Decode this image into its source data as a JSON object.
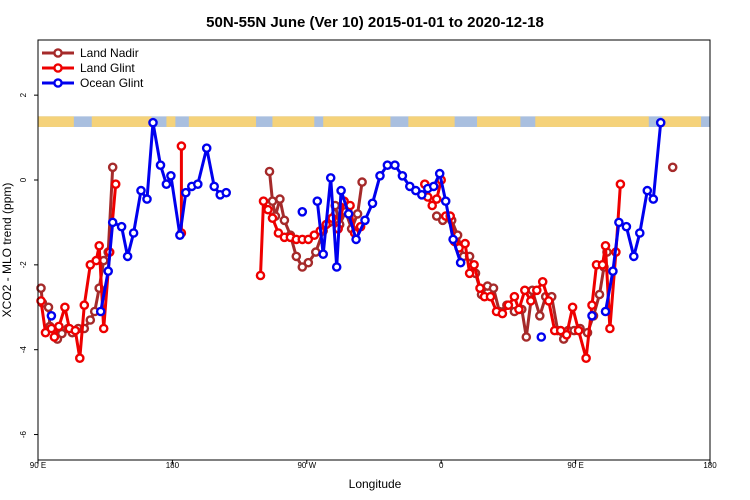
{
  "chart_data": {
    "type": "line",
    "title": "50N-55N June (Ver 10)   2015-01-01 to 2020-12-18",
    "xlabel": "Longitude",
    "ylabel": "XCO2 - MLO trend (ppm)",
    "x_ticks": [
      {
        "value": 90,
        "label": "90 E"
      },
      {
        "value": 180,
        "label": "180"
      },
      {
        "value": 270,
        "label": "90 W"
      },
      {
        "value": 360,
        "label": "0"
      },
      {
        "value": 450,
        "label": "90 E"
      },
      {
        "value": 540,
        "label": "180"
      }
    ],
    "y_ticks": [
      -6,
      -4,
      -2,
      0,
      2
    ],
    "xlim": [
      90,
      540
    ],
    "ylim": [
      -6.6,
      3.3
    ],
    "grid": false,
    "legend_position": "top-left",
    "land_band": {
      "y_range": [
        1.25,
        1.5
      ],
      "land_color": "#f5d27a",
      "ocean_color": "#a9bfdf",
      "land_intervals": [
        [
          90,
          114
        ],
        [
          126,
          166
        ],
        [
          176,
          182
        ],
        [
          191,
          236
        ],
        [
          247,
          275
        ],
        [
          281,
          326
        ],
        [
          338,
          369
        ],
        [
          384,
          413
        ],
        [
          423,
          499
        ],
        [
          508,
          534
        ]
      ]
    },
    "series": [
      {
        "name": "Land Nadir",
        "color": "#a52a2a",
        "segments": [
          [
            [
              92,
              -2.55
            ],
            [
              93,
              -2.9
            ],
            [
              97,
              -3.0
            ],
            [
              98,
              -3.45
            ],
            [
              103,
              -3.75
            ],
            [
              106,
              -3.62
            ],
            [
              110,
              -3.5
            ],
            [
              113,
              -3.6
            ],
            [
              117,
              -3.5
            ],
            [
              121,
              -3.5
            ],
            [
              125,
              -3.3
            ],
            [
              128,
              -3.1
            ],
            [
              131,
              -2.55
            ],
            [
              134,
              -1.9
            ],
            [
              137,
              -1.7
            ],
            [
              140,
              0.3
            ]
          ],
          [
            [
              245,
              0.2
            ],
            [
              247,
              -0.5
            ],
            [
              249,
              -0.85
            ],
            [
              252,
              -0.45
            ],
            [
              255,
              -0.95
            ],
            [
              259,
              -1.3
            ],
            [
              263,
              -1.8
            ],
            [
              267,
              -2.05
            ],
            [
              271,
              -1.95
            ],
            [
              276,
              -1.7
            ],
            [
              281,
              -1.2
            ],
            [
              285,
              -1.0
            ],
            [
              289,
              -0.6
            ],
            [
              292,
              -1.05
            ],
            [
              296,
              -0.75
            ],
            [
              300,
              -1.15
            ],
            [
              304,
              -0.8
            ],
            [
              307,
              -0.05
            ]
          ],
          [
            [
              357,
              -0.85
            ],
            [
              361,
              -0.95
            ],
            [
              364,
              -0.85
            ],
            [
              367,
              -0.95
            ],
            [
              371,
              -1.3
            ],
            [
              375,
              -1.8
            ],
            [
              379,
              -1.8
            ],
            [
              383,
              -2.2
            ],
            [
              387,
              -2.7
            ],
            [
              391,
              -2.5
            ],
            [
              395,
              -2.55
            ],
            [
              399,
              -3.1
            ],
            [
              404,
              -2.95
            ],
            [
              409,
              -3.1
            ],
            [
              414,
              -3.05
            ],
            [
              417,
              -3.7
            ],
            [
              421,
              -2.6
            ],
            [
              426,
              -3.2
            ],
            [
              430,
              -2.75
            ],
            [
              434,
              -2.75
            ],
            [
              438,
              -3.55
            ],
            [
              442,
              -3.75
            ],
            [
              445,
              -3.55
            ],
            [
              449,
              -3.55
            ],
            [
              453,
              -3.5
            ],
            [
              458,
              -3.6
            ],
            [
              462,
              -3.2
            ],
            [
              466,
              -2.7
            ],
            [
              469,
              -2.05
            ],
            [
              471,
              -1.7
            ]
          ],
          [
            [
              515,
              0.3
            ]
          ]
        ]
      },
      {
        "name": "Land Glint",
        "color": "#ee0000",
        "segments": [
          [
            [
              92,
              -2.85
            ],
            [
              95,
              -3.6
            ],
            [
              99,
              -3.5
            ],
            [
              101,
              -3.7
            ],
            [
              104,
              -3.45
            ],
            [
              108,
              -3.0
            ],
            [
              111,
              -3.5
            ],
            [
              115,
              -3.55
            ],
            [
              118,
              -4.2
            ],
            [
              121,
              -2.95
            ],
            [
              125,
              -2.0
            ],
            [
              129,
              -1.9
            ],
            [
              131,
              -1.55
            ],
            [
              134,
              -3.5
            ],
            [
              138,
              -1.7
            ],
            [
              142,
              -0.1
            ]
          ],
          [
            [
              186,
              0.8
            ],
            [
              186,
              -1.25
            ]
          ],
          [
            [
              239,
              -2.25
            ],
            [
              241,
              -0.5
            ],
            [
              244,
              -0.7
            ],
            [
              247,
              -0.9
            ],
            [
              251,
              -1.25
            ],
            [
              255,
              -1.35
            ],
            [
              259,
              -1.35
            ],
            [
              263,
              -1.4
            ],
            [
              267,
              -1.4
            ],
            [
              271,
              -1.4
            ],
            [
              275,
              -1.3
            ],
            [
              279,
              -1.2
            ],
            [
              283,
              -1.05
            ],
            [
              287,
              -0.9
            ],
            [
              291,
              -1.15
            ],
            [
              295,
              -0.5
            ],
            [
              299,
              -0.6
            ],
            [
              302,
              -1.25
            ],
            [
              306,
              -1.1
            ]
          ],
          [
            [
              349,
              -0.1
            ],
            [
              351,
              -0.4
            ],
            [
              354,
              -0.6
            ],
            [
              357,
              -0.45
            ],
            [
              360,
              0.0
            ]
          ],
          [
            [
              363,
              -0.85
            ],
            [
              366,
              -0.85
            ],
            [
              369,
              -1.45
            ],
            [
              372,
              -1.6
            ],
            [
              376,
              -1.5
            ],
            [
              379,
              -2.2
            ],
            [
              382,
              -2.0
            ],
            [
              386,
              -2.55
            ],
            [
              389,
              -2.75
            ],
            [
              393,
              -2.75
            ],
            [
              397,
              -3.1
            ],
            [
              401,
              -3.15
            ],
            [
              405,
              -2.95
            ],
            [
              409,
              -2.75
            ],
            [
              412,
              -3.05
            ],
            [
              416,
              -2.6
            ],
            [
              420,
              -2.85
            ],
            [
              424,
              -2.6
            ],
            [
              428,
              -2.4
            ],
            [
              432,
              -2.85
            ],
            [
              436,
              -3.55
            ],
            [
              440,
              -3.55
            ],
            [
              444,
              -3.65
            ],
            [
              448,
              -3.0
            ],
            [
              452,
              -3.55
            ],
            [
              457,
              -4.2
            ],
            [
              461,
              -2.95
            ],
            [
              464,
              -2.0
            ],
            [
              468,
              -2.0
            ],
            [
              470,
              -1.55
            ],
            [
              473,
              -3.5
            ],
            [
              477,
              -1.7
            ],
            [
              480,
              -0.1
            ]
          ]
        ]
      },
      {
        "name": "Ocean Glint",
        "color": "#0000ee",
        "segments": [
          [
            [
              99,
              -3.2
            ]
          ],
          [
            [
              132,
              -3.1
            ],
            [
              137,
              -2.15
            ],
            [
              140,
              -1.0
            ],
            [
              146,
              -1.1
            ],
            [
              150,
              -1.8
            ],
            [
              154,
              -1.25
            ],
            [
              159,
              -0.25
            ],
            [
              163,
              -0.45
            ],
            [
              167,
              1.35
            ],
            [
              172,
              0.35
            ],
            [
              176,
              -0.1
            ],
            [
              179,
              0.1
            ],
            [
              185,
              -1.3
            ],
            [
              189,
              -0.3
            ],
            [
              193,
              -0.15
            ],
            [
              197,
              -0.1
            ],
            [
              203,
              0.75
            ],
            [
              208,
              -0.15
            ],
            [
              212,
              -0.35
            ],
            [
              216,
              -0.3
            ]
          ],
          [
            [
              267,
              -0.75
            ]
          ],
          [
            [
              277,
              -0.5
            ],
            [
              281,
              -1.75
            ],
            [
              286,
              0.05
            ],
            [
              290,
              -2.05
            ],
            [
              293,
              -0.25
            ],
            [
              298,
              -0.8
            ],
            [
              303,
              -1.4
            ],
            [
              309,
              -0.95
            ],
            [
              314,
              -0.55
            ],
            [
              319,
              0.1
            ],
            [
              324,
              0.35
            ],
            [
              329,
              0.35
            ],
            [
              334,
              0.1
            ],
            [
              339,
              -0.15
            ],
            [
              343,
              -0.25
            ],
            [
              347,
              -0.35
            ],
            [
              351,
              -0.2
            ],
            [
              355,
              -0.15
            ],
            [
              359,
              0.15
            ],
            [
              363,
              -0.5
            ],
            [
              368,
              -1.4
            ],
            [
              373,
              -1.95
            ]
          ],
          [
            [
              427,
              -3.7
            ]
          ],
          [
            [
              461,
              -3.2
            ]
          ],
          [
            [
              470,
              -3.1
            ],
            [
              475,
              -2.15
            ],
            [
              479,
              -1.0
            ],
            [
              484,
              -1.1
            ],
            [
              489,
              -1.8
            ],
            [
              493,
              -1.25
            ],
            [
              498,
              -0.25
            ],
            [
              502,
              -0.45
            ],
            [
              507,
              1.35
            ]
          ]
        ]
      }
    ]
  }
}
